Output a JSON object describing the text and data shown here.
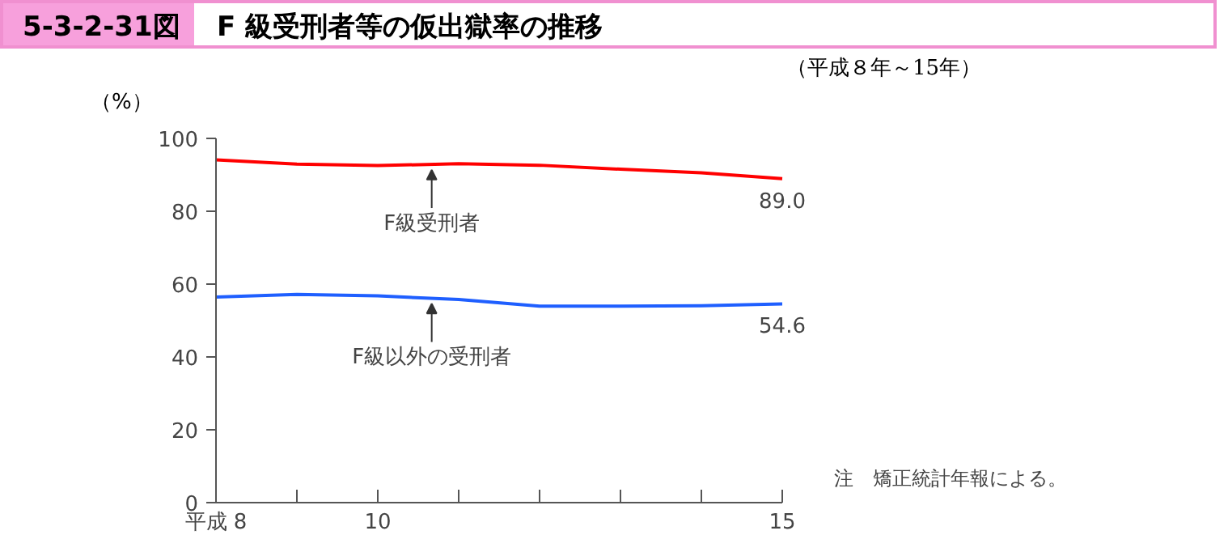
{
  "chart_data": {
    "type": "line",
    "title": "5-3-2-31図",
    "subtitle": "F 級受刑者等の仮出獄率の推移",
    "annotations": [
      "（平成８年～15年）",
      "注　矯正統計年報による。"
    ],
    "ylabel": "（%）",
    "x": [
      8,
      9,
      10,
      11,
      12,
      13,
      14,
      15
    ],
    "series": [
      {
        "name": "F級受刑者",
        "color": "#ff0000",
        "values": [
          94.2,
          93.0,
          92.6,
          93.1,
          92.7,
          91.6,
          90.6,
          89.0
        ],
        "value_labels": [
          null,
          null,
          null,
          null,
          null,
          null,
          null,
          "89.0"
        ]
      },
      {
        "name": "F級以外の受刑者",
        "color": "#1f5fff",
        "values": [
          56.5,
          57.2,
          56.8,
          55.8,
          54.0,
          54.0,
          54.1,
          54.6
        ],
        "value_labels": [
          null,
          null,
          null,
          null,
          null,
          null,
          null,
          "54.6"
        ]
      }
    ],
    "xlim": [
      8,
      15
    ],
    "xticks": [
      {
        "value": 8,
        "label": "平成 8"
      },
      {
        "value": 9,
        "label": null
      },
      10,
      {
        "value": 11,
        "label": null
      },
      {
        "value": 12,
        "label": null
      },
      {
        "value": 13,
        "label": null
      },
      {
        "value": 14,
        "label": null
      },
      15
    ],
    "ylim": [
      0,
      100
    ],
    "yticks": [
      0,
      20,
      40,
      60,
      80,
      100
    ],
    "grid": false,
    "legend": false,
    "marker": "none",
    "line_style": "solid"
  }
}
